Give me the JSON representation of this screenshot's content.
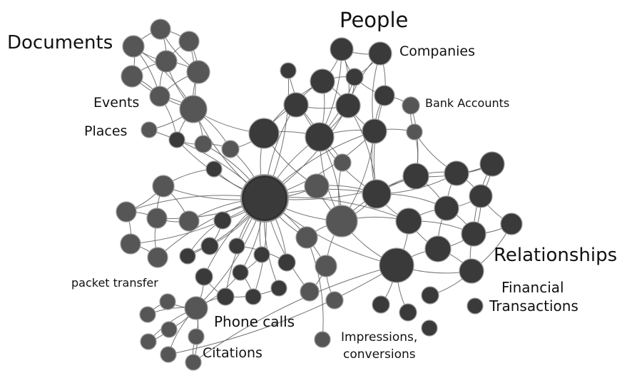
{
  "labels": {
    "documents": "Documents",
    "people": "People",
    "companies": "Companies",
    "bank_accounts": "Bank Accounts",
    "events": "Events",
    "places": "Places",
    "relationships": "Relationships",
    "financial_line1": "Financial",
    "financial_line2": "Transactions",
    "packet_transfer": "packet transfer",
    "phone_calls": "Phone calls",
    "citations": "Citations",
    "impressions_line1": "Impressions,",
    "impressions_line2": "conversions"
  },
  "colors": {
    "dark_node": "#3a3a3a",
    "mid_node": "#565656",
    "light_node": "#606060",
    "edge": "#5a5a5a",
    "node_stroke": "#9a9a9a"
  }
}
